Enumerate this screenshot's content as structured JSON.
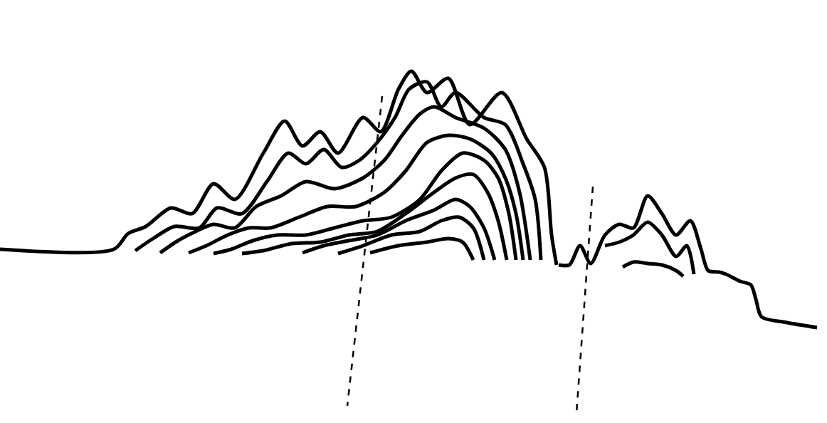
{
  "chart_data": {
    "type": "line",
    "color": "#000000",
    "grid": false,
    "tick_labels": false,
    "xlim": [
      0,
      1162
    ],
    "ylim": [
      0,
      594
    ],
    "series": [
      {
        "line_style": "solid",
        "x": [
          0,
          160,
          180,
          205,
          240,
          270,
          300,
          330,
          370,
          400,
          425,
          450,
          475,
          510,
          535,
          560,
          578,
          600,
          630,
          660,
          705,
          740,
          765,
          775,
          782
        ],
        "values": [
          244,
          244,
          266,
          276,
          302,
          294,
          336,
          314,
          379,
          424,
          389,
          409,
          379,
          429,
          409,
          469,
          494,
          464,
          484,
          419,
          464,
          399,
          359,
          264,
          222
        ]
      },
      {
        "line_style": "solid",
        "x": [
          190,
          215,
          245,
          280,
          305,
          340,
          375,
          405,
          430,
          455,
          480,
          505,
          530,
          555,
          575,
          600,
          620,
          640,
          680,
          710,
          735,
          752,
          760
        ],
        "values": [
          242,
          259,
          276,
          274,
          302,
          294,
          339,
          379,
          364,
          384,
          359,
          369,
          394,
          429,
          469,
          479,
          444,
          464,
          429,
          419,
          364,
          314,
          229
        ]
      },
      {
        "line_style": "solid",
        "x": [
          225,
          250,
          275,
          300,
          330,
          360,
          395,
          430,
          470,
          510,
          540,
          565,
          590,
          610,
          640,
          680,
          710,
          730,
          745
        ],
        "values": [
          239,
          256,
          269,
          279,
          274,
          304,
          319,
          339,
          329,
          344,
          369,
          404,
          434,
          444,
          429,
          414,
          384,
          324,
          229
        ]
      },
      {
        "line_style": "solid",
        "x": [
          265,
          290,
          320,
          350,
          380,
          420,
          460,
          500,
          540,
          570,
          600,
          630,
          660,
          690,
          710,
          725,
          735
        ],
        "values": [
          239,
          249,
          264,
          274,
          274,
          289,
          304,
          304,
          324,
          354,
          394,
          404,
          399,
          379,
          344,
          294,
          229
        ]
      },
      {
        "line_style": "solid",
        "x": [
          300,
          325,
          355,
          390,
          430,
          470,
          510,
          550,
          590,
          620,
          650,
          680,
          700,
          715,
          725
        ],
        "values": [
          238,
          244,
          256,
          264,
          264,
          274,
          284,
          289,
          314,
          354,
          379,
          369,
          344,
          294,
          229
        ]
      },
      {
        "line_style": "solid",
        "x": [
          340,
          370,
          410,
          450,
          490,
          530,
          570,
          610,
          640,
          665,
          685,
          700,
          712
        ],
        "values": [
          238,
          242,
          252,
          254,
          264,
          269,
          294,
          324,
          344,
          349,
          324,
          284,
          229
        ]
      },
      {
        "line_style": "solid",
        "x": [
          425,
          455,
          490,
          530,
          570,
          610,
          640,
          660,
          680,
          695
        ],
        "values": [
          239,
          249,
          256,
          264,
          284,
          299,
          314,
          304,
          274,
          229
        ]
      },
      {
        "line_style": "solid",
        "x": [
          475,
          510,
          550,
          590,
          620,
          645,
          665,
          680
        ],
        "values": [
          238,
          249,
          264,
          269,
          284,
          289,
          274,
          229
        ]
      },
      {
        "line_style": "solid",
        "x": [
          520,
          560,
          600,
          630,
          650,
          665
        ],
        "values": [
          239,
          249,
          254,
          259,
          254,
          229
        ]
      },
      {
        "line_style": "solid",
        "x": [
          785,
          800,
          815,
          830,
          850,
          870,
          890,
          910,
          930,
          950,
          970,
          985,
          995,
          1010,
          1020,
          1040,
          1055,
          1062,
          1070,
          1100,
          1148
        ],
        "values": [
          222,
          222,
          249,
          224,
          264,
          279,
          274,
          319,
          294,
          264,
          284,
          244,
          214,
          212,
          209,
          199,
          194,
          174,
          149,
          142,
          134
        ]
      },
      {
        "line_style": "solid",
        "x": [
          850,
          870,
          890,
          910,
          930,
          950,
          965,
          975
        ],
        "values": [
          249,
          254,
          264,
          282,
          264,
          234,
          249,
          209
        ]
      },
      {
        "line_style": "solid",
        "x": [
          875,
          890,
          910,
          930,
          950,
          960
        ],
        "values": [
          219,
          226,
          224,
          222,
          214,
          206
        ]
      },
      {
        "line_style": "dash",
        "x": [
          537,
          488
        ],
        "values": [
          459,
          24
        ]
      },
      {
        "line_style": "dash",
        "x": [
          833,
          810
        ],
        "values": [
          332,
          14
        ]
      }
    ]
  }
}
